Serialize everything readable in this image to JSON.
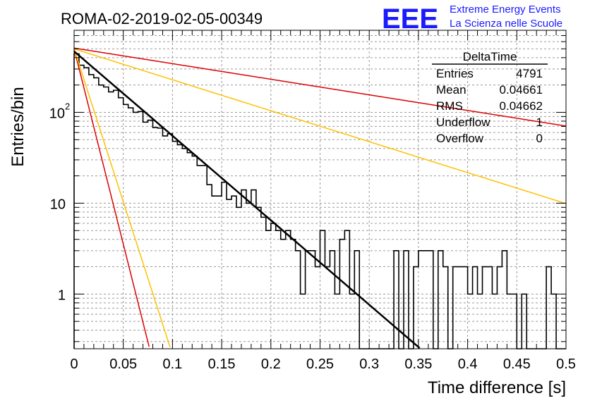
{
  "header": {
    "run_title": "ROMA-02-2019-02-05-00349",
    "logo_text": "EEE",
    "logo_line1": "Extreme Energy Events",
    "logo_line2": "La Scienza nelle Scuole"
  },
  "colors": {
    "logo_blue": "#1a1aff",
    "fit_black": "#000000",
    "ref_red": "#dd0000",
    "ref_orange": "#ffc000"
  },
  "stats_box": {
    "title": "DeltaTime",
    "rows": [
      {
        "label": "Entries",
        "value": "4791"
      },
      {
        "label": "Mean",
        "value": "0.04661"
      },
      {
        "label": "RMS",
        "value": "0.04662"
      },
      {
        "label": "Underflow",
        "value": "1"
      },
      {
        "label": "Overflow",
        "value": "0"
      }
    ]
  },
  "chart_data": {
    "type": "histogram",
    "title": "ROMA-02-2019-02-05-00349",
    "xlabel": "Time difference [s]",
    "ylabel": "Entries/bin",
    "xlim": [
      0,
      0.5
    ],
    "ylim": [
      0.25,
      800
    ],
    "yscale": "log",
    "grid": true,
    "x_ticks": [
      "0",
      "0.05",
      "0.1",
      "0.15",
      "0.2",
      "0.25",
      "0.3",
      "0.35",
      "0.4",
      "0.45",
      "0.5"
    ],
    "y_ticks": [
      "1",
      "10",
      "10^2"
    ],
    "bin_width": 0.005,
    "bin_counts": [
      440,
      330,
      310,
      260,
      240,
      200,
      190,
      168,
      175,
      145,
      122,
      112,
      100,
      102,
      78,
      82,
      68,
      67,
      55,
      58,
      48,
      44,
      40,
      36,
      33,
      26,
      26,
      16,
      12,
      12,
      17,
      11,
      12,
      9,
      14,
      10,
      14,
      9,
      7,
      5,
      6,
      5,
      4,
      5,
      4,
      3,
      1,
      3,
      3,
      2,
      5,
      2,
      3,
      1,
      4,
      5,
      1,
      3,
      0,
      0,
      0,
      0,
      0,
      0,
      0,
      3,
      0,
      3,
      0,
      2,
      3,
      3,
      3,
      0,
      3,
      2,
      0,
      2,
      2,
      2,
      1,
      2,
      1,
      2,
      2,
      1,
      2,
      3,
      1,
      1,
      0,
      1,
      0,
      0,
      0,
      0,
      2,
      1,
      0,
      0,
      0,
      0,
      0,
      0,
      0,
      0,
      0,
      0,
      0,
      0,
      0,
      0,
      0,
      0,
      0,
      0,
      0,
      0,
      0,
      0,
      0,
      0,
      0,
      0,
      0,
      0,
      0,
      0,
      0,
      0,
      0,
      0,
      0,
      0,
      0,
      0,
      0,
      0,
      0,
      0,
      0,
      0,
      0,
      0,
      0,
      0,
      0,
      0,
      0,
      0,
      0,
      0,
      0,
      0,
      0,
      0,
      0,
      0,
      0,
      0
    ],
    "bin_overrides": {
      "62": 0,
      "63": 0
    },
    "exponential_curves": [
      {
        "color": "#000000",
        "width": 2.5,
        "A": 470,
        "tau": 0.0467
      },
      {
        "color": "#dd0000",
        "width": 1.5,
        "A": 500,
        "tau": 0.0101
      },
      {
        "color": "#ffc000",
        "width": 1.5,
        "A": 500,
        "tau": 0.0129
      },
      {
        "color": "#dd0000",
        "width": 1.5,
        "A": 510,
        "tau": 0.253
      },
      {
        "color": "#ffc000",
        "width": 1.5,
        "A": 500,
        "tau": 0.1275
      }
    ]
  }
}
